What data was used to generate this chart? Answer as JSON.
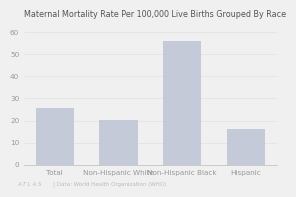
{
  "title": "Maternal Mortality Rate Per 100,000 Live Births Grouped By Race",
  "categories": [
    "Total",
    "Non-Hispanic White",
    "Non-Hispanic Black",
    "Hispanic"
  ],
  "values": [
    25.5,
    20.1,
    55.9,
    16.0
  ],
  "bar_color": "#c5cad8",
  "ylim": [
    0,
    65
  ],
  "yticks": [
    0,
    10,
    20,
    30,
    40,
    50,
    60
  ],
  "title_fontsize": 5.8,
  "tick_fontsize": 5.2,
  "xlabel_fontsize": 5.2,
  "footer_left": "A T L A S",
  "footer_right": "| Data: World Health Organization (WHO)",
  "background_color": "#f0f0f0",
  "plot_bg_color": "#f0f0f0",
  "grid_color": "#dddddd",
  "text_color": "#999999",
  "title_color": "#555555"
}
